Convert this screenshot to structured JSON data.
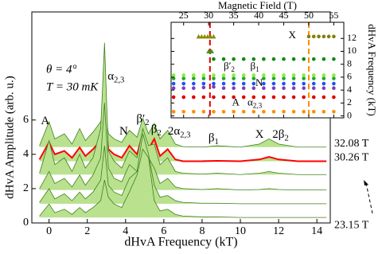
{
  "chart_data": [
    {
      "type": "line",
      "xlabel": "dHvA Frequency (kT)",
      "ylabel": "dHvA Amplitude (arb. u.)",
      "conditions": [
        "θ = 4°",
        "T = 30 mK"
      ],
      "xlim": [
        -0.9,
        14.7
      ],
      "ylim": [
        0,
        12.3
      ],
      "xticks": [
        0,
        2,
        4,
        6,
        8,
        10,
        12,
        14
      ],
      "yticks": [
        0,
        2,
        4,
        6
      ],
      "x": [
        -0.5,
        0,
        0.3,
        0.8,
        1.2,
        1.6,
        1.9,
        2.3,
        2.7,
        2.9,
        3.1,
        3.4,
        3.8,
        4.2,
        4.6,
        4.9,
        5.2,
        5.5,
        5.8,
        6.2,
        6.6,
        7,
        8,
        8.8,
        10,
        11,
        11.5,
        12,
        13,
        14.5
      ],
      "series": [
        {
          "name": "23.15 T",
          "color": "#3f7f1f",
          "fill": "#b9e18e",
          "values": [
            0.4,
            1.1,
            0.6,
            0.8,
            0.5,
            0.9,
            0.6,
            0.9,
            1.3,
            2.5,
            1.5,
            1.1,
            0.9,
            1.8,
            2.8,
            4.3,
            3.8,
            1.3,
            0.7,
            0.8,
            0.5,
            0.4,
            0.35,
            0.35,
            0.32,
            0.32,
            0.32,
            0.32,
            0.32,
            0.32
          ]
        },
        {
          "color": "#3f7f1f",
          "fill": "#b9e18e",
          "values": [
            1.2,
            2.0,
            1.4,
            1.7,
            1.3,
            1.8,
            1.4,
            1.8,
            2.5,
            4.5,
            2.2,
            1.8,
            1.6,
            2.6,
            3.0,
            5.2,
            4.0,
            2.2,
            1.5,
            1.6,
            1.3,
            1.2,
            1.15,
            1.15,
            1.12,
            1.12,
            1.12,
            1.12,
            1.12,
            1.12
          ]
        },
        {
          "color": "#3f7f1f",
          "fill": "#b9e18e",
          "values": [
            2.0,
            3.0,
            2.3,
            2.6,
            2.1,
            2.8,
            2.2,
            2.8,
            3.8,
            7.0,
            3.2,
            2.6,
            2.4,
            3.4,
            3.0,
            5.0,
            3.8,
            3.2,
            2.3,
            2.6,
            2.1,
            2.0,
            1.95,
            2.0,
            1.92,
            1.95,
            2.0,
            1.95,
            1.92,
            1.92
          ]
        },
        {
          "color": "#3f7f1f",
          "fill": "#b9e18e",
          "values": [
            2.9,
            4.8,
            3.4,
            3.8,
            3.0,
            4.0,
            3.2,
            3.8,
            5.5,
            10.5,
            4.2,
            3.6,
            3.2,
            4.2,
            3.8,
            5.5,
            4.5,
            4.6,
            3.4,
            3.8,
            3.0,
            2.9,
            2.85,
            2.9,
            2.82,
            2.9,
            3.0,
            2.9,
            2.82,
            2.82
          ]
        },
        {
          "name": "30.26 T",
          "color": "#ff0000",
          "fill": "#b9e18e",
          "values": [
            3.7,
            4.7,
            4.0,
            4.2,
            3.8,
            4.4,
            3.9,
            4.3,
            4.8,
            6.5,
            4.3,
            4.0,
            3.8,
            4.5,
            4.0,
            5.2,
            4.3,
            4.9,
            3.9,
            4.3,
            3.7,
            3.6,
            3.6,
            3.62,
            3.6,
            3.7,
            3.85,
            3.7,
            3.6,
            3.6
          ]
        },
        {
          "name": "32.08 T",
          "color": "#3f7f1f",
          "fill": "#b9e18e",
          "values": [
            4.5,
            5.9,
            4.9,
            5.2,
            4.6,
            5.5,
            4.8,
            5.3,
            5.9,
            7.0,
            5.2,
            4.9,
            4.7,
            5.4,
            5.0,
            6.1,
            5.2,
            5.8,
            4.9,
            5.4,
            4.6,
            4.45,
            4.42,
            4.5,
            4.42,
            4.6,
            4.9,
            4.6,
            4.42,
            4.42
          ]
        }
      ],
      "annotations": [
        {
          "text": "A",
          "x": -0.2,
          "y": 5.9
        },
        {
          "text": "α",
          "sub": "2,3",
          "x": 3.5,
          "y": 8.5
        },
        {
          "text": "N",
          "x": 3.9,
          "y": 5.3
        },
        {
          "text": "β′",
          "sub": "2",
          "x": 4.9,
          "y": 6.0
        },
        {
          "text": "β",
          "sub": "2",
          "x": 5.6,
          "y": 5.4
        },
        {
          "text": "2α",
          "sub": "2,3",
          "x": 6.8,
          "y": 5.3
        },
        {
          "text": "β",
          "sub": "1",
          "x": 8.6,
          "y": 4.9
        },
        {
          "text": "X",
          "x": 11.0,
          "y": 5.1
        },
        {
          "text": "2β",
          "sub": "2",
          "x": 12.1,
          "y": 5.1
        }
      ]
    },
    {
      "type": "scatter",
      "xlabel": "Magnetic Field (T)",
      "ylabel": "dHvA Frequency (kT)",
      "xlim": [
        22.5,
        57
      ],
      "ylim": [
        -0.3,
        14.5
      ],
      "xticks": [
        25,
        30,
        35,
        40,
        45,
        50,
        55
      ],
      "yticks": [
        0,
        2,
        4,
        6,
        8,
        10,
        12
      ],
      "vlines": [
        {
          "x": 30.26,
          "color": "#e00000"
        },
        {
          "x": 50,
          "color": "#ff8c00"
        }
      ],
      "series": [
        {
          "color": "#ff8c00",
          "x": [
            23,
            25,
            27,
            29,
            31,
            33,
            35,
            37,
            39,
            41,
            43,
            45,
            47,
            49,
            51,
            53,
            55
          ],
          "values": [
            0.65,
            0.65,
            0.65,
            0.65,
            0.65,
            0.65,
            0.65,
            0.65,
            0.65,
            0.65,
            0.65,
            0.65,
            0.65,
            0.65,
            0.65,
            0.65,
            0.65
          ]
        },
        {
          "color": "#e00000",
          "x": [
            23,
            25,
            27,
            29,
            31,
            33,
            35,
            37,
            39,
            41,
            43,
            45,
            47,
            49,
            51,
            53,
            55
          ],
          "values": [
            2.9,
            2.9,
            2.9,
            2.9,
            2.9,
            2.9,
            2.9,
            2.9,
            2.9,
            2.9,
            2.9,
            2.9,
            2.9,
            2.9,
            2.9,
            2.9,
            2.9
          ]
        },
        {
          "color": "#7b3fbf",
          "x": [
            23,
            25,
            27,
            29,
            31,
            33,
            35,
            37,
            39,
            41,
            43,
            45,
            47,
            49,
            51,
            53,
            55
          ],
          "values": [
            4.3,
            4.3,
            4.3,
            4.4,
            4.5,
            4.3,
            4.3,
            4.3,
            4.3,
            4.3,
            4.3,
            4.3,
            4.3,
            4.3,
            4.3,
            4.3,
            4.3
          ]
        },
        {
          "color": "#1e50ff",
          "x": [
            23,
            25,
            27,
            29,
            31,
            33,
            35,
            37,
            39,
            41,
            43,
            45,
            47,
            49,
            51,
            53,
            55
          ],
          "values": [
            5.0,
            5.0,
            5.0,
            5.0,
            5.0,
            5.0,
            5.0,
            5.0,
            5.0,
            5.0,
            5.0,
            5.0,
            5.0,
            5.0,
            5.0,
            5.0,
            5.0
          ]
        },
        {
          "color": "#22aa22",
          "x": [
            23,
            25,
            27,
            29,
            31,
            33,
            35,
            37,
            39,
            41,
            43,
            45,
            47,
            49,
            51,
            53,
            55
          ],
          "values": [
            5.8,
            5.8,
            5.8,
            5.8,
            5.8,
            5.8,
            5.8,
            5.8,
            5.8,
            5.8,
            5.8,
            5.8,
            5.8,
            5.8,
            5.8,
            5.8,
            5.8
          ]
        },
        {
          "color": "#88ee44",
          "x": [
            23,
            25,
            27,
            29,
            31,
            33,
            35,
            37,
            39,
            41,
            43,
            45,
            47,
            49,
            51,
            53,
            55
          ],
          "values": [
            6.3,
            6.3,
            6.3,
            6.3,
            6.3,
            6.3,
            6.3,
            6.3,
            6.3,
            6.3,
            6.3,
            6.3,
            6.3,
            6.3,
            6.3,
            6.3,
            6.3
          ]
        },
        {
          "color": "#118811",
          "x": [
            31,
            33,
            35,
            37,
            39,
            41,
            43,
            45,
            47,
            49,
            51,
            53,
            55
          ],
          "values": [
            8.8,
            8.8,
            8.8,
            8.8,
            8.8,
            8.8,
            8.8,
            8.8,
            8.8,
            8.8,
            8.8,
            8.8,
            8.8
          ]
        },
        {
          "color": "#3c9a1e",
          "marker": "triangle",
          "x": [
            30,
            30.6
          ],
          "values": [
            10,
            10
          ]
        },
        {
          "color": "#8b8b00",
          "marker": "triangle",
          "x": [
            28,
            28.6,
            29.2,
            29.8,
            30.4,
            31
          ],
          "values": [
            12.3,
            12.3,
            12.3,
            12.3,
            12.3,
            12.3
          ]
        },
        {
          "color": "#808000",
          "x": [
            50,
            51,
            52,
            53,
            54,
            55
          ],
          "values": [
            12.3,
            12.3,
            12.3,
            12.3,
            12.3,
            12.3
          ]
        }
      ],
      "annotations": [
        {
          "text": "X",
          "x": 46.7,
          "y": 12.4
        },
        {
          "text": "β′",
          "sub": "2",
          "x": 34.1,
          "y": 7.6
        },
        {
          "text": "β",
          "sub": "1",
          "x": 39.2,
          "y": 7.6
        },
        {
          "text": "N",
          "x": 40.1,
          "y": 5.0
        },
        {
          "text": "A",
          "x": 35.4,
          "y": 2.0
        },
        {
          "text": "α",
          "sub": "2,3",
          "x": 39.2,
          "y": 2.0
        }
      ]
    }
  ]
}
